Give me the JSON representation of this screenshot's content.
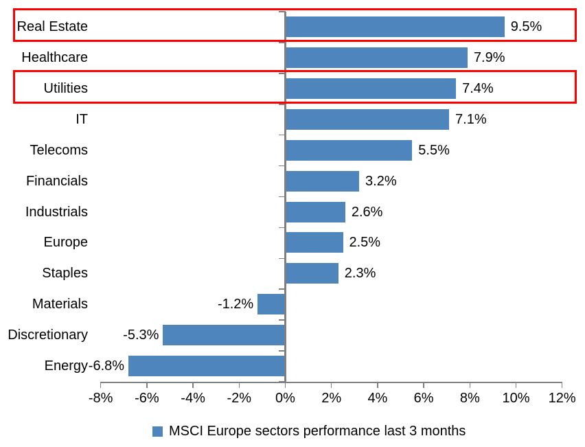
{
  "chart_data": {
    "type": "bar",
    "orientation": "horizontal",
    "title": "",
    "legend": "MSCI Europe sectors performance last 3 months",
    "legend_position": "bottom",
    "categories": [
      "Real Estate",
      "Healthcare",
      "Utilities",
      "IT",
      "Telecoms",
      "Financials",
      "Industrials",
      "Europe",
      "Staples",
      "Materials",
      "Discretionary",
      "Energy"
    ],
    "values": [
      9.5,
      7.9,
      7.4,
      7.1,
      5.5,
      3.2,
      2.6,
      2.5,
      2.3,
      -1.2,
      -5.3,
      -6.8
    ],
    "value_labels": [
      "9.5%",
      "7.9%",
      "7.4%",
      "7.1%",
      "5.5%",
      "3.2%",
      "2.6%",
      "2.5%",
      "2.3%",
      "-1.2%",
      "-5.3%",
      "-6.8%"
    ],
    "xlabel": "",
    "ylabel": "",
    "xlim": [
      -8,
      12
    ],
    "x_tick_values": [
      -8,
      -6,
      -4,
      -2,
      0,
      2,
      4,
      6,
      8,
      10,
      12
    ],
    "x_tick_labels": [
      "-8%",
      "-6%",
      "-4%",
      "-2%",
      "0%",
      "2%",
      "4%",
      "6%",
      "8%",
      "10%",
      "12%"
    ],
    "grid": false,
    "data_labels": "outside-end",
    "highlighted_categories": [
      "Real Estate",
      "Utilities"
    ],
    "colors": {
      "bar": "#4E85BD",
      "highlight_box": "#FF0000",
      "axis": "#7F7F7F",
      "text": "#000000",
      "background": "#FFFFFF"
    }
  }
}
